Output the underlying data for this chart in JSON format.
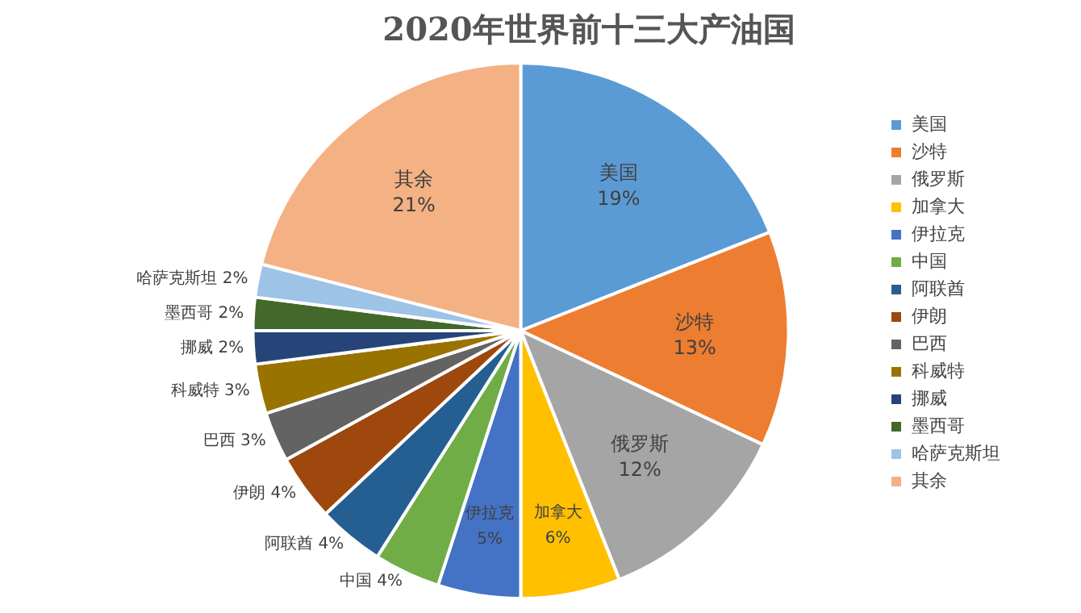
{
  "chart_data": {
    "type": "pie",
    "title": "2020年世界前十三大产油国",
    "categories": [
      "美国",
      "沙特",
      "俄罗斯",
      "加拿大",
      "伊拉克",
      "中国",
      "阿联酋",
      "伊朗",
      "巴西",
      "科威特",
      "挪威",
      "墨西哥",
      "哈萨克斯坦",
      "其余"
    ],
    "values": [
      19,
      13,
      12,
      6,
      5,
      4,
      4,
      4,
      3,
      3,
      2,
      2,
      2,
      21
    ],
    "value_labels": [
      "19%",
      "13%",
      "12%",
      "6%",
      "5%",
      "4%",
      "4%",
      "4%",
      "3%",
      "3%",
      "2%",
      "2%",
      "2%",
      "21%"
    ],
    "colors": [
      "#5b9bd5",
      "#ed7d31",
      "#a5a5a5",
      "#ffc000",
      "#4472c4",
      "#70ad47",
      "#255e91",
      "#9e480e",
      "#636363",
      "#997300",
      "#264478",
      "#43682b",
      "#9dc3e6",
      "#f4b183"
    ],
    "legend": "right"
  }
}
